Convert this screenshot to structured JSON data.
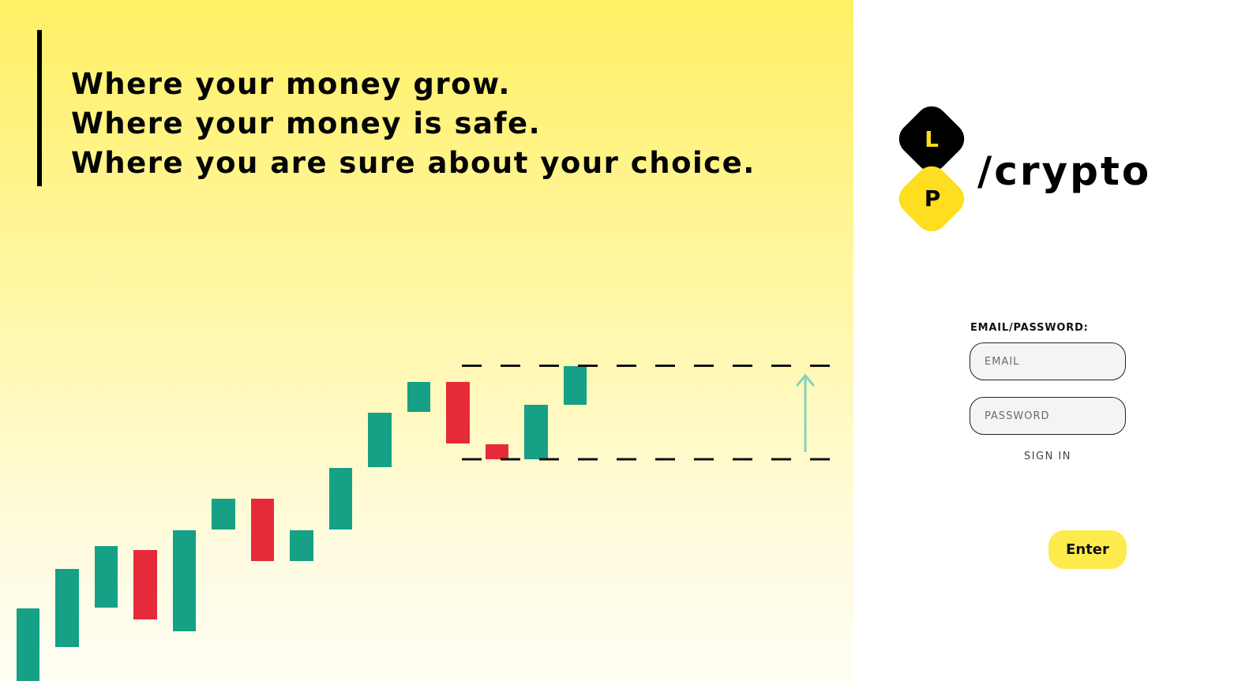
{
  "hero": {
    "lines": [
      "Where your money grow.",
      "Where your money is safe.",
      "Where you are sure about your choice."
    ]
  },
  "logo": {
    "letter_top": "L",
    "letter_bottom": "P",
    "wordmark": "/crypto"
  },
  "login": {
    "label": "EMAIL/PASSWORD:",
    "email_placeholder": "EMAIL",
    "password_placeholder": "PASSWORD",
    "signin_label": "SIGN IN",
    "enter_label": "Enter"
  },
  "colors": {
    "bullish": "#16a085",
    "bearish": "#e52b3a",
    "accent_yellow": "#fdeb4e",
    "arrow": "#7fd6be"
  }
}
